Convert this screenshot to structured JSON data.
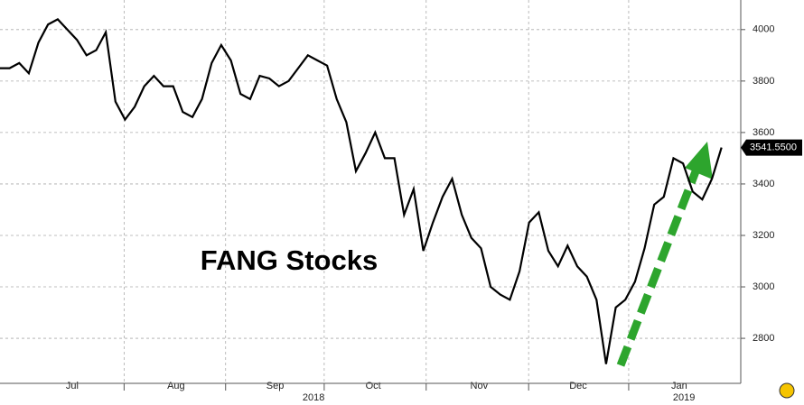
{
  "chart_data": {
    "type": "line",
    "title": "FANG Stocks",
    "series": [
      {
        "color": "#000000",
        "values": [
          3850,
          3850,
          3870,
          3830,
          3950,
          4020,
          4040,
          4000,
          3960,
          3900,
          3920,
          3990,
          3720,
          3650,
          3700,
          3780,
          3820,
          3780,
          3780,
          3680,
          3660,
          3730,
          3870,
          3940,
          3880,
          3750,
          3730,
          3820,
          3810,
          3780,
          3800,
          3850,
          3900,
          3880,
          3860,
          3730,
          3640,
          3450,
          3520,
          3600,
          3500,
          3500,
          3280,
          3380,
          3140,
          3250,
          3350,
          3420,
          3280,
          3190,
          3150,
          3000,
          2970,
          2950,
          3060,
          3250,
          3290,
          3140,
          3080,
          3160,
          3080,
          3040,
          2950,
          2700,
          2920,
          2950,
          3020,
          3150,
          3320,
          3350,
          3500,
          3480,
          3370,
          3340,
          3420,
          3541.55
        ],
        "value_labels": [
          null,
          null,
          null,
          null,
          null,
          null,
          null,
          null,
          null,
          null,
          null,
          null,
          null,
          null,
          null,
          null,
          null,
          null,
          null,
          null,
          null,
          null,
          null,
          null,
          null,
          null,
          null,
          null,
          null,
          null,
          null,
          null,
          null,
          null,
          null,
          null,
          null,
          null,
          null,
          null,
          null,
          null,
          null,
          null,
          null,
          null,
          null,
          null,
          null,
          null,
          null,
          null,
          null,
          null,
          null,
          null,
          null,
          null,
          null,
          null,
          null,
          null,
          null,
          null,
          null,
          null,
          null,
          null,
          null,
          null,
          null,
          null,
          null,
          null,
          null,
          "3541.5500"
        ]
      }
    ],
    "xlim": [
      0,
      77
    ],
    "xticks": [
      {
        "value": 7.5,
        "label": "Jul"
      },
      {
        "value": 18.3,
        "label": "Aug"
      },
      {
        "value": 28.6,
        "label": "Sep"
      },
      {
        "value": 38.8,
        "label": "Oct"
      },
      {
        "value": 49.8,
        "label": "Nov"
      },
      {
        "value": 60.1,
        "label": "Dec"
      },
      {
        "value": 70.6,
        "label": "Jan"
      }
    ],
    "year_ticks": [
      {
        "value": 32.6,
        "label": "2018"
      },
      {
        "value": 71.1,
        "label": "2019"
      }
    ],
    "ylim": [
      2625,
      4115
    ],
    "yticks": [
      2800,
      3000,
      3200,
      3400,
      3600,
      3800,
      4000
    ],
    "grid": true
  }
}
